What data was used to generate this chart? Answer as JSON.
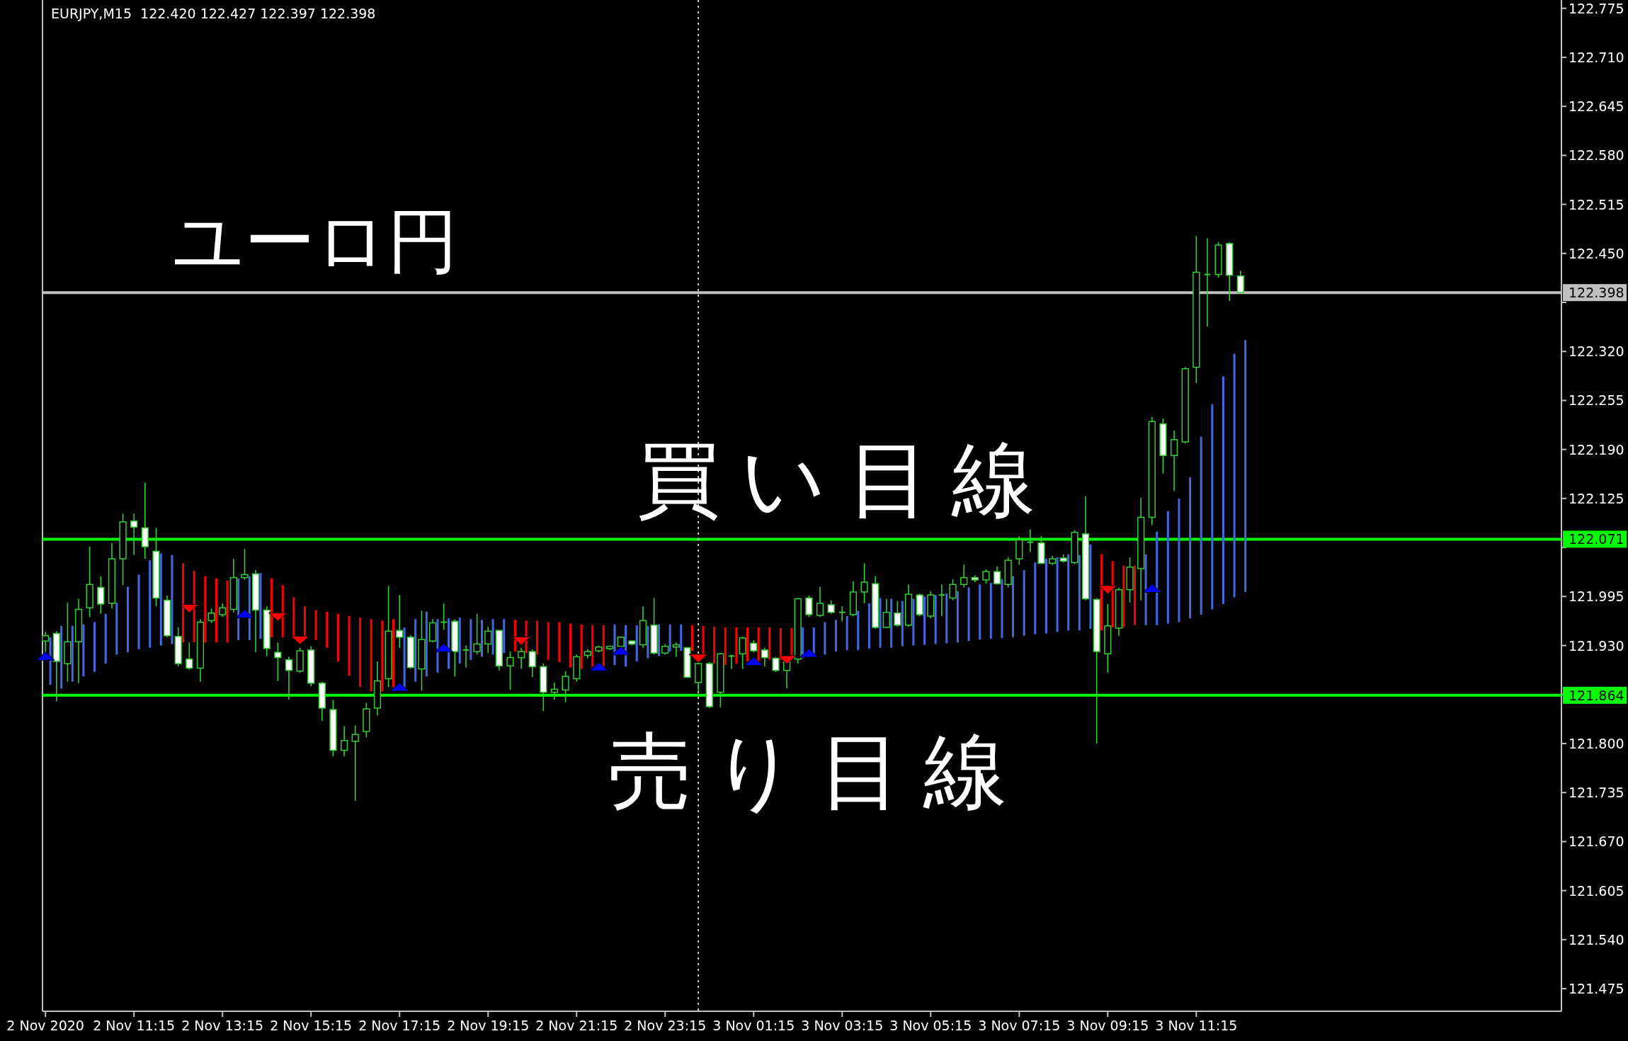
{
  "chart_data": {
    "type": "candlestick",
    "title": "EURJPY,M15  122.420 122.427 122.397 122.398",
    "annotations": [
      "ユーロ円",
      "買い目線",
      "売り目線"
    ],
    "color": "#32cd32",
    "x": [
      "2020-11-02T09:15",
      "2020-11-02T09:30",
      "2020-11-02T09:45",
      "2020-11-02T10:00",
      "2020-11-02T10:15",
      "2020-11-02T10:30",
      "2020-11-02T10:45",
      "2020-11-02T11:00",
      "2020-11-02T11:15",
      "2020-11-02T11:30",
      "2020-11-02T11:45",
      "2020-11-02T12:00",
      "2020-11-02T12:15",
      "2020-11-02T12:30",
      "2020-11-02T12:45",
      "2020-11-02T13:00",
      "2020-11-02T13:15",
      "2020-11-02T13:30",
      "2020-11-02T13:45",
      "2020-11-02T14:00",
      "2020-11-02T14:15",
      "2020-11-02T14:30",
      "2020-11-02T14:45",
      "2020-11-02T15:00",
      "2020-11-02T15:15",
      "2020-11-02T15:30",
      "2020-11-02T15:45",
      "2020-11-02T16:00",
      "2020-11-02T16:15",
      "2020-11-02T16:30",
      "2020-11-02T16:45",
      "2020-11-02T17:00",
      "2020-11-02T17:15",
      "2020-11-02T17:30",
      "2020-11-02T17:45",
      "2020-11-02T18:00",
      "2020-11-02T18:15",
      "2020-11-02T18:30",
      "2020-11-02T18:45",
      "2020-11-02T19:00",
      "2020-11-02T19:15",
      "2020-11-02T19:30",
      "2020-11-02T19:45",
      "2020-11-02T20:00",
      "2020-11-02T20:15",
      "2020-11-02T20:30",
      "2020-11-02T20:45",
      "2020-11-02T21:00",
      "2020-11-02T21:15",
      "2020-11-02T21:30",
      "2020-11-02T21:45",
      "2020-11-02T22:00",
      "2020-11-02T22:15",
      "2020-11-02T22:30",
      "2020-11-02T22:45",
      "2020-11-02T23:00",
      "2020-11-02T23:15",
      "2020-11-02T23:30",
      "2020-11-02T23:45",
      "2020-11-03T00:00",
      "2020-11-03T00:15",
      "2020-11-03T00:30",
      "2020-11-03T00:45",
      "2020-11-03T01:00",
      "2020-11-03T01:15",
      "2020-11-03T01:30",
      "2020-11-03T01:45",
      "2020-11-03T02:00",
      "2020-11-03T02:15",
      "2020-11-03T02:30",
      "2020-11-03T02:45",
      "2020-11-03T03:00",
      "2020-11-03T03:15",
      "2020-11-03T03:30",
      "2020-11-03T03:45",
      "2020-11-03T04:00",
      "2020-11-03T04:15",
      "2020-11-03T04:30",
      "2020-11-03T04:45",
      "2020-11-03T05:00",
      "2020-11-03T05:15",
      "2020-11-03T05:30",
      "2020-11-03T05:45",
      "2020-11-03T06:00",
      "2020-11-03T06:15",
      "2020-11-03T06:30",
      "2020-11-03T06:45",
      "2020-11-03T07:00",
      "2020-11-03T07:15",
      "2020-11-03T07:30",
      "2020-11-03T07:45",
      "2020-11-03T08:00",
      "2020-11-03T08:15",
      "2020-11-03T08:30",
      "2020-11-03T08:45",
      "2020-11-03T09:00",
      "2020-11-03T09:15",
      "2020-11-03T09:30",
      "2020-11-03T09:45",
      "2020-11-03T10:00",
      "2020-11-03T10:15",
      "2020-11-03T10:30",
      "2020-11-03T10:45",
      "2020-11-03T11:00",
      "2020-11-03T11:15",
      "2020-11-03T11:30",
      "2020-11-03T11:45",
      "2020-11-03T12:00",
      "2020-11-03T12:15"
    ],
    "ohlc": [
      [
        121.936,
        121.948,
        121.92,
        121.943
      ],
      [
        121.946,
        121.949,
        121.856,
        121.909
      ],
      [
        121.906,
        121.987,
        121.882,
        121.935
      ],
      [
        121.935,
        121.992,
        121.88,
        121.978
      ],
      [
        121.98,
        122.061,
        121.968,
        122.011
      ],
      [
        122.007,
        122.022,
        121.972,
        121.985
      ],
      [
        121.986,
        122.066,
        121.979,
        122.045
      ],
      [
        122.045,
        122.105,
        122.01,
        122.094
      ],
      [
        122.095,
        122.105,
        122.05,
        122.087
      ],
      [
        122.086,
        122.146,
        122.045,
        122.061
      ],
      [
        122.055,
        122.086,
        121.982,
        121.993
      ],
      [
        121.99,
        121.996,
        121.941,
        121.943
      ],
      [
        121.942,
        121.954,
        121.902,
        121.906
      ],
      [
        121.912,
        121.934,
        121.898,
        121.9
      ],
      [
        121.9,
        121.965,
        121.882,
        121.961
      ],
      [
        121.963,
        121.979,
        121.96,
        121.973
      ],
      [
        121.971,
        121.986,
        121.968,
        121.98
      ],
      [
        121.978,
        122.045,
        121.974,
        122.02
      ],
      [
        122.02,
        122.058,
        122.017,
        122.024
      ],
      [
        122.025,
        122.03,
        121.921,
        121.977
      ],
      [
        121.977,
        121.982,
        121.916,
        121.926
      ],
      [
        121.921,
        121.934,
        121.883,
        121.914
      ],
      [
        121.911,
        121.915,
        121.858,
        121.897
      ],
      [
        121.896,
        121.927,
        121.894,
        121.923
      ],
      [
        121.924,
        121.929,
        121.876,
        121.88
      ],
      [
        121.88,
        121.882,
        121.83,
        121.847
      ],
      [
        121.845,
        121.858,
        121.783,
        121.791
      ],
      [
        121.791,
        121.823,
        121.783,
        121.804
      ],
      [
        121.803,
        121.824,
        121.724,
        121.812
      ],
      [
        121.816,
        121.854,
        121.808,
        121.846
      ],
      [
        121.847,
        121.909,
        121.837,
        121.883
      ],
      [
        121.886,
        122.009,
        121.875,
        121.949
      ],
      [
        121.95,
        121.997,
        121.927,
        121.941
      ],
      [
        121.941,
        121.944,
        121.899,
        121.901
      ],
      [
        121.899,
        121.976,
        121.87,
        121.938
      ],
      [
        121.936,
        121.965,
        121.934,
        121.96
      ],
      [
        121.961,
        121.986,
        121.951,
        121.961
      ],
      [
        121.962,
        121.965,
        121.889,
        121.922
      ],
      [
        121.924,
        121.93,
        121.901,
        121.924
      ],
      [
        121.922,
        121.972,
        121.918,
        121.932
      ],
      [
        121.932,
        121.955,
        121.92,
        121.949
      ],
      [
        121.95,
        121.951,
        121.897,
        121.903
      ],
      [
        121.903,
        121.922,
        121.871,
        121.914
      ],
      [
        121.914,
        121.927,
        121.899,
        121.922
      ],
      [
        121.922,
        121.925,
        121.888,
        121.902
      ],
      [
        121.902,
        121.906,
        121.843,
        121.868
      ],
      [
        121.868,
        121.881,
        121.858,
        121.872
      ],
      [
        121.871,
        121.896,
        121.855,
        121.889
      ],
      [
        121.886,
        121.918,
        121.882,
        121.915
      ],
      [
        121.917,
        121.925,
        121.913,
        121.922
      ],
      [
        121.923,
        121.93,
        121.921,
        121.928
      ],
      [
        121.926,
        121.93,
        121.924,
        121.929
      ],
      [
        121.929,
        121.942,
        121.927,
        121.941
      ],
      [
        121.936,
        121.937,
        121.93,
        121.932
      ],
      [
        121.931,
        121.982,
        121.927,
        121.963
      ],
      [
        121.957,
        121.993,
        121.918,
        121.92
      ],
      [
        121.92,
        121.932,
        121.918,
        121.929
      ],
      [
        121.928,
        121.934,
        121.915,
        121.931
      ],
      [
        121.927,
        121.928,
        121.887,
        121.888
      ],
      [
        121.881,
        121.909,
        121.868,
        121.906
      ],
      [
        121.906,
        121.908,
        121.847,
        121.849
      ],
      [
        121.868,
        121.92,
        121.848,
        121.919
      ],
      [
        121.916,
        121.918,
        121.899,
        121.916
      ],
      [
        121.919,
        121.942,
        121.899,
        121.94
      ],
      [
        121.933,
        121.937,
        121.921,
        121.923
      ],
      [
        121.924,
        121.927,
        121.902,
        121.914
      ],
      [
        121.913,
        121.915,
        121.895,
        121.897
      ],
      [
        121.897,
        121.911,
        121.873,
        121.909
      ],
      [
        121.912,
        121.993,
        121.906,
        121.992
      ],
      [
        121.993,
        121.996,
        121.968,
        121.971
      ],
      [
        121.97,
        122.008,
        121.968,
        121.986
      ],
      [
        121.984,
        121.99,
        121.972,
        121.974
      ],
      [
        121.974,
        121.982,
        121.962,
        121.974
      ],
      [
        121.971,
        122.015,
        121.969,
        122.001
      ],
      [
        122.001,
        122.039,
        121.986,
        122.014
      ],
      [
        122.012,
        122.022,
        121.952,
        121.954
      ],
      [
        121.954,
        121.992,
        121.953,
        121.974
      ],
      [
        121.973,
        121.989,
        121.955,
        121.957
      ],
      [
        121.957,
        122.011,
        121.955,
        121.998
      ],
      [
        121.997,
        121.999,
        121.969,
        121.971
      ],
      [
        121.969,
        122.002,
        121.966,
        121.997
      ],
      [
        121.997,
        122.011,
        121.969,
        121.997
      ],
      [
        121.993,
        122.018,
        121.99,
        122.011
      ],
      [
        122.011,
        122.037,
        122.007,
        122.02
      ],
      [
        122.02,
        122.023,
        122.014,
        122.017
      ],
      [
        122.017,
        122.031,
        122.012,
        122.028
      ],
      [
        122.028,
        122.035,
        122.011,
        122.012
      ],
      [
        122.011,
        122.047,
        122.007,
        122.043
      ],
      [
        122.045,
        122.075,
        122.037,
        122.07
      ],
      [
        122.067,
        122.084,
        122.054,
        122.067
      ],
      [
        122.066,
        122.075,
        122.038,
        122.039
      ],
      [
        122.039,
        122.049,
        122.037,
        122.045
      ],
      [
        122.046,
        122.051,
        122.04,
        122.042
      ],
      [
        122.04,
        122.083,
        122.038,
        122.08
      ],
      [
        122.078,
        122.128,
        121.99,
        121.992
      ],
      [
        121.991,
        121.993,
        121.8,
        121.922
      ],
      [
        121.919,
        121.985,
        121.894,
        121.956
      ],
      [
        121.953,
        122.007,
        121.943,
        122.004
      ],
      [
        122.004,
        122.047,
        121.987,
        122.034
      ],
      [
        122.032,
        122.126,
        121.99,
        122.1
      ],
      [
        122.1,
        122.233,
        122.09,
        122.227
      ],
      [
        122.224,
        122.231,
        122.158,
        122.182
      ],
      [
        122.182,
        122.215,
        122.135,
        122.203
      ],
      [
        122.2,
        122.299,
        122.198,
        122.297
      ],
      [
        122.299,
        122.473,
        122.278,
        122.425
      ],
      [
        122.422,
        122.47,
        122.353,
        122.422
      ],
      [
        122.422,
        122.465,
        122.418,
        122.461
      ],
      [
        122.463,
        122.465,
        122.387,
        122.421
      ],
      [
        122.42,
        122.427,
        122.397,
        122.398
      ]
    ],
    "series": [
      {
        "type": "bar",
        "base": [
          121.878,
          121.873,
          121.882,
          121.889,
          121.895,
          121.906,
          121.918,
          121.921,
          121.925,
          121.927,
          121.93,
          121.932,
          121.934,
          121.934,
          121.934,
          121.934,
          121.934,
          121.937,
          121.937,
          121.939,
          121.941,
          121.941,
          121.939,
          121.939,
          121.937,
          121.927,
          121.909,
          121.89,
          121.875,
          121.869,
          121.869,
          121.875,
          121.871,
          121.882,
          121.889,
          121.894,
          121.899,
          121.906,
          121.911,
          121.915,
          121.918,
          121.92,
          121.922,
          121.92,
          121.918,
          121.911,
          121.908,
          121.901,
          121.899,
          121.902,
          121.902,
          121.904,
          121.902,
          121.909,
          121.913,
          121.916,
          121.922,
          121.923,
          121.923,
          121.913,
          121.906,
          121.904,
          121.906,
          121.909,
          121.909,
          121.911,
          121.911,
          121.911,
          121.913,
          121.916,
          121.918,
          121.922,
          121.924,
          121.924,
          121.926,
          121.927,
          121.927,
          121.929,
          121.93,
          121.931,
          121.932,
          121.933,
          121.934,
          121.936,
          121.938,
          121.939,
          121.94,
          121.941,
          121.943,
          121.945,
          121.946,
          121.948,
          121.95,
          121.95,
          121.952,
          121.95,
          121.954,
          121.954,
          121.957,
          121.957,
          121.957,
          121.959,
          121.961,
          121.966,
          121.971,
          121.978,
          121.985,
          121.994,
          122.001
        ],
        "values": [
          0.063,
          0.083,
          0.074,
          0.069,
          0.066,
          0.066,
          0.069,
          0.087,
          0.099,
          0.116,
          0.122,
          0.118,
          0.105,
          0.095,
          0.088,
          0.085,
          0.082,
          0.082,
          0.085,
          0.087,
          0.078,
          0.069,
          0.055,
          0.043,
          0.04,
          0.048,
          0.063,
          0.079,
          0.092,
          0.096,
          0.094,
          0.09,
          0.083,
          0.083,
          0.086,
          0.071,
          0.067,
          0.061,
          0.054,
          0.049,
          0.047,
          0.045,
          0.042,
          0.043,
          0.045,
          0.05,
          0.053,
          0.058,
          0.059,
          0.055,
          0.055,
          0.054,
          0.055,
          0.048,
          0.043,
          0.042,
          0.036,
          0.035,
          0.034,
          0.043,
          0.049,
          0.05,
          0.048,
          0.045,
          0.045,
          0.043,
          0.042,
          0.042,
          0.041,
          0.038,
          0.043,
          0.042,
          0.045,
          0.052,
          0.06,
          0.066,
          0.065,
          0.06,
          0.062,
          0.064,
          0.065,
          0.066,
          0.068,
          0.071,
          0.073,
          0.074,
          0.078,
          0.081,
          0.087,
          0.095,
          0.099,
          0.099,
          0.101,
          0.1,
          0.112,
          0.101,
          0.088,
          0.082,
          0.079,
          0.094,
          0.124,
          0.149,
          0.164,
          0.187,
          0.236,
          0.272,
          0.302,
          0.323,
          0.334
        ],
        "colors": [
          "#4169e1",
          "#4169e1",
          "#4169e1",
          "#4169e1",
          "#4169e1",
          "#4169e1",
          "#4169e1",
          "#4169e1",
          "#4169e1",
          "#4169e1",
          "#4169e1",
          "#4169e1",
          "#ff0000",
          "#ff0000",
          "#ff0000",
          "#ff0000",
          "#ff0000",
          "#4169e1",
          "#4169e1",
          "#4169e1",
          "#ff0000",
          "#ff0000",
          "#ff0000",
          "#ff0000",
          "#ff0000",
          "#ff0000",
          "#ff0000",
          "#ff0000",
          "#ff0000",
          "#ff0000",
          "#ff0000",
          "#ff0000",
          "#4169e1",
          "#4169e1",
          "#4169e1",
          "#4169e1",
          "#4169e1",
          "#4169e1",
          "#4169e1",
          "#4169e1",
          "#4169e1",
          "#4169e1",
          "#ff0000",
          "#ff0000",
          "#ff0000",
          "#ff0000",
          "#ff0000",
          "#ff0000",
          "#ff0000",
          "#ff0000",
          "#ff0000",
          "#4169e1",
          "#4169e1",
          "#4169e1",
          "#4169e1",
          "#4169e1",
          "#4169e1",
          "#4169e1",
          "#ff0000",
          "#ff0000",
          "#ff0000",
          "#ff0000",
          "#ff0000",
          "#ff0000",
          "#ff0000",
          "#ff0000",
          "#ff0000",
          "#ff0000",
          "#4169e1",
          "#4169e1",
          "#4169e1",
          "#4169e1",
          "#4169e1",
          "#4169e1",
          "#4169e1",
          "#4169e1",
          "#4169e1",
          "#4169e1",
          "#4169e1",
          "#4169e1",
          "#4169e1",
          "#4169e1",
          "#4169e1",
          "#4169e1",
          "#4169e1",
          "#4169e1",
          "#4169e1",
          "#4169e1",
          "#4169e1",
          "#4169e1",
          "#4169e1",
          "#4169e1",
          "#4169e1",
          "#4169e1",
          "#4169e1",
          "#ff0000",
          "#ff0000",
          "#ff0000",
          "#ff0000",
          "#4169e1",
          "#4169e1",
          "#4169e1",
          "#4169e1",
          "#4169e1",
          "#4169e1",
          "#4169e1",
          "#4169e1",
          "#4169e1",
          "#4169e1"
        ]
      },
      {
        "type": "scatter",
        "marker": "triangle",
        "color": "#ff0000",
        "x": [
          "2020-11-02T12:30",
          "2020-11-02T14:30",
          "2020-11-02T15:00",
          "2020-11-02T20:00",
          "2020-11-03T00:00",
          "2020-11-03T02:00",
          "2020-11-03T09:15"
        ],
        "values": [
          121.979,
          121.968,
          121.937,
          121.936,
          121.913,
          121.911,
          122.004
        ]
      },
      {
        "type": "scatter",
        "marker": "triangle",
        "color": "#0000ff",
        "x": [
          "2020-11-02T09:15",
          "2020-11-02T13:45",
          "2020-11-02T17:15",
          "2020-11-02T18:15",
          "2020-11-02T21:45",
          "2020-11-02T22:15",
          "2020-11-03T01:15",
          "2020-11-03T02:30",
          "2020-11-03T10:15"
        ],
        "values": [
          121.916,
          121.972,
          121.875,
          121.927,
          121.902,
          121.923,
          121.909,
          121.92,
          122.006
        ]
      }
    ],
    "xlim": [
      "2020-11-02T09:11",
      "2020-11-03T19:30"
    ],
    "xticks": [
      {
        "value": "2020-11-02T09:15",
        "label": "2 Nov 2020"
      },
      {
        "value": "2020-11-02T11:15",
        "label": "2 Nov 11:15"
      },
      {
        "value": "2020-11-02T13:15",
        "label": "2 Nov 13:15"
      },
      {
        "value": "2020-11-02T15:15",
        "label": "2 Nov 15:15"
      },
      {
        "value": "2020-11-02T17:15",
        "label": "2 Nov 17:15"
      },
      {
        "value": "2020-11-02T19:15",
        "label": "2 Nov 19:15"
      },
      {
        "value": "2020-11-02T21:15",
        "label": "2 Nov 21:15"
      },
      {
        "value": "2020-11-02T23:15",
        "label": "2 Nov 23:15"
      },
      {
        "value": "2020-11-03T01:15",
        "label": "3 Nov 01:15"
      },
      {
        "value": "2020-11-03T03:15",
        "label": "3 Nov 03:15"
      },
      {
        "value": "2020-11-03T05:15",
        "label": "3 Nov 05:15"
      },
      {
        "value": "2020-11-03T07:15",
        "label": "3 Nov 07:15"
      },
      {
        "value": "2020-11-03T09:15",
        "label": "3 Nov 09:15"
      },
      {
        "value": "2020-11-03T11:15",
        "label": "3 Nov 11:15"
      }
    ],
    "ylim": [
      121.445,
      122.786
    ],
    "yticks": [
      {
        "value": 121.475,
        "label": "121.475"
      },
      {
        "value": 121.54,
        "label": "121.540"
      },
      {
        "value": 121.605,
        "label": "121.605"
      },
      {
        "value": 121.67,
        "label": "121.670"
      },
      {
        "value": 121.735,
        "label": "121.735"
      },
      {
        "value": 121.8,
        "label": "121.800"
      },
      {
        "value": 121.865,
        "label": null
      },
      {
        "value": 121.93,
        "label": "121.930"
      },
      {
        "value": 121.995,
        "label": "121.995"
      },
      {
        "value": 122.06,
        "label": null
      },
      {
        "value": 122.125,
        "label": "122.125"
      },
      {
        "value": 122.19,
        "label": "122.190"
      },
      {
        "value": 122.255,
        "label": "122.255"
      },
      {
        "value": 122.32,
        "label": "122.320"
      },
      {
        "value": 122.385,
        "label": null
      },
      {
        "value": 122.45,
        "label": "122.450"
      },
      {
        "value": 122.515,
        "label": "122.515"
      },
      {
        "value": 122.58,
        "label": "122.580"
      },
      {
        "value": 122.645,
        "label": "122.645"
      },
      {
        "value": 122.71,
        "label": "122.710"
      },
      {
        "value": 122.775,
        "label": "122.775"
      }
    ],
    "ref_lines": [
      {
        "axis": "y",
        "value": 122.071,
        "label": "122.071",
        "color": "#00ff00"
      },
      {
        "axis": "y",
        "value": 121.864,
        "label": "121.864",
        "color": "#00ff00"
      },
      {
        "axis": "y",
        "value": 122.398,
        "label": "122.398",
        "color": "#c0c0c0"
      },
      {
        "axis": "x",
        "value": "2020-11-03T00:00",
        "color": "#ffffff",
        "line_style": "dotted"
      }
    ],
    "grid": false
  }
}
